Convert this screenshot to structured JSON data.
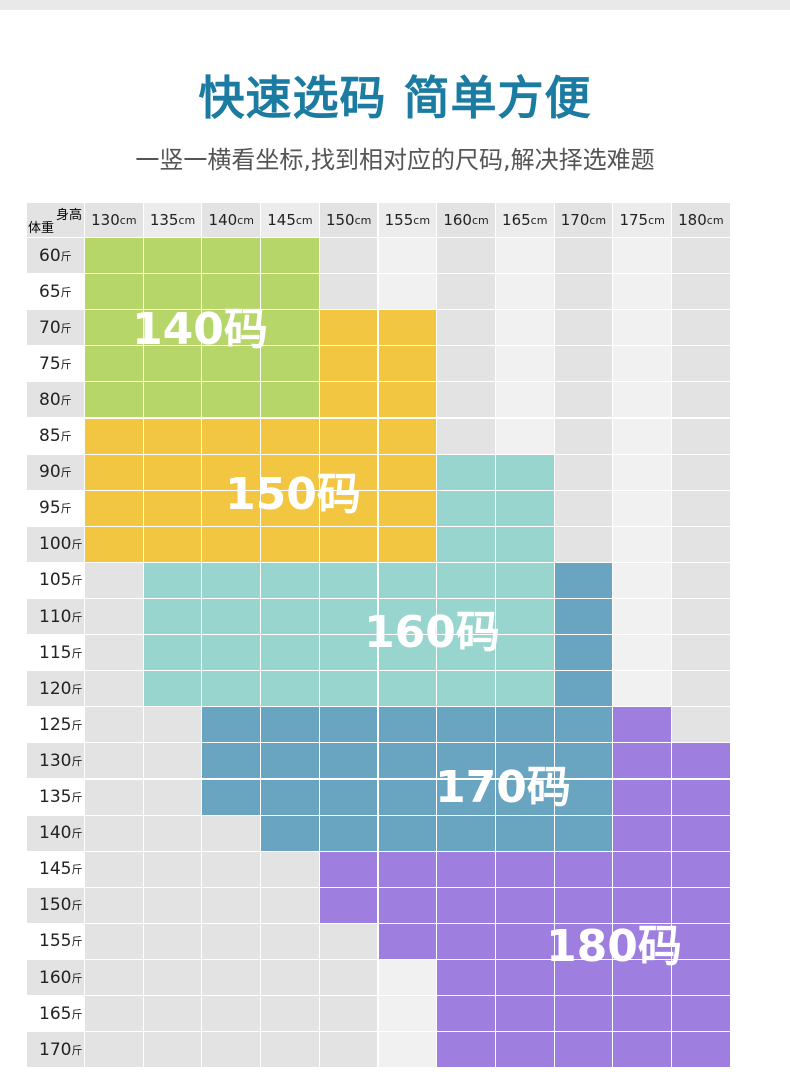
{
  "title": "快速选码 简单方便",
  "subtitle": "一竖一横看坐标,找到相对应的尺码,解决择选难题",
  "corner": {
    "height": "身高",
    "weight": "体重"
  },
  "height_unit": "cm",
  "weight_unit": "斤",
  "heights": [
    130,
    135,
    140,
    145,
    150,
    155,
    160,
    165,
    170,
    175,
    180
  ],
  "weights": [
    60,
    65,
    70,
    75,
    80,
    85,
    90,
    95,
    100,
    105,
    110,
    115,
    120,
    125,
    130,
    135,
    140,
    145,
    150,
    155,
    160,
    165,
    170
  ],
  "zones": [
    {
      "label": "140码",
      "color": "#b6d66a"
    },
    {
      "label": "150码",
      "color": "#f2c640"
    },
    {
      "label": "160码",
      "color": "#98d5cf"
    },
    {
      "label": "170码",
      "color": "#69a4c1"
    },
    {
      "label": "180码",
      "color": "#9e7fe0"
    }
  ],
  "grid": [
    [
      0,
      0,
      0,
      0,
      null,
      null,
      null,
      null,
      null,
      null,
      null
    ],
    [
      0,
      0,
      0,
      0,
      null,
      null,
      null,
      null,
      null,
      null,
      null
    ],
    [
      0,
      0,
      0,
      0,
      1,
      1,
      null,
      null,
      null,
      null,
      null
    ],
    [
      0,
      0,
      0,
      0,
      1,
      1,
      null,
      null,
      null,
      null,
      null
    ],
    [
      0,
      0,
      0,
      0,
      1,
      1,
      null,
      null,
      null,
      null,
      null
    ],
    [
      1,
      1,
      1,
      1,
      1,
      1,
      null,
      null,
      null,
      null,
      null
    ],
    [
      1,
      1,
      1,
      1,
      1,
      1,
      2,
      2,
      null,
      null,
      null
    ],
    [
      1,
      1,
      1,
      1,
      1,
      1,
      2,
      2,
      null,
      null,
      null
    ],
    [
      1,
      1,
      1,
      1,
      1,
      1,
      2,
      2,
      null,
      null,
      null
    ],
    [
      null,
      2,
      2,
      2,
      2,
      2,
      2,
      2,
      3,
      null,
      null
    ],
    [
      null,
      2,
      2,
      2,
      2,
      2,
      2,
      2,
      3,
      null,
      null
    ],
    [
      null,
      2,
      2,
      2,
      2,
      2,
      2,
      2,
      3,
      null,
      null
    ],
    [
      null,
      2,
      2,
      2,
      2,
      2,
      2,
      2,
      3,
      null,
      null
    ],
    [
      null,
      null,
      3,
      3,
      3,
      3,
      3,
      3,
      3,
      4,
      null
    ],
    [
      null,
      null,
      3,
      3,
      3,
      3,
      3,
      3,
      3,
      4,
      4
    ],
    [
      null,
      null,
      3,
      3,
      3,
      3,
      3,
      3,
      3,
      4,
      4
    ],
    [
      null,
      null,
      null,
      3,
      3,
      3,
      3,
      3,
      3,
      4,
      4
    ],
    [
      null,
      null,
      null,
      null,
      4,
      4,
      4,
      4,
      4,
      4,
      4
    ],
    [
      null,
      null,
      null,
      null,
      4,
      4,
      4,
      4,
      4,
      4,
      4
    ],
    [
      null,
      null,
      null,
      null,
      null,
      4,
      4,
      4,
      4,
      4,
      4
    ],
    [
      null,
      null,
      null,
      null,
      null,
      null,
      4,
      4,
      4,
      4,
      4
    ],
    [
      null,
      null,
      null,
      null,
      null,
      null,
      4,
      4,
      4,
      4,
      4
    ],
    [
      null,
      null,
      null,
      null,
      null,
      null,
      4,
      4,
      4,
      4,
      4
    ]
  ]
}
